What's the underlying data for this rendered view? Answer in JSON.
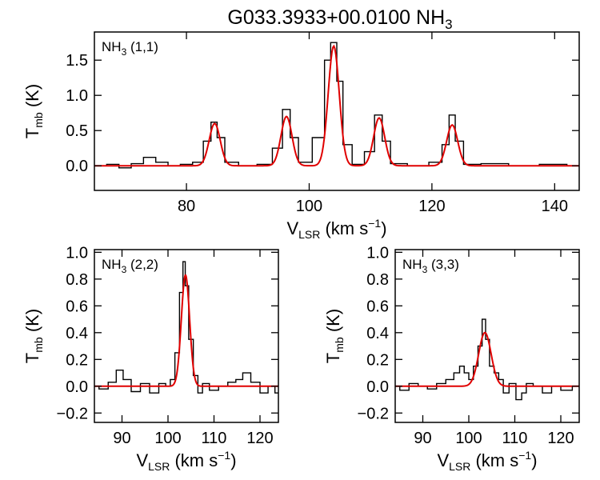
{
  "title": {
    "main": "G033.3933+00.0100 NH",
    "sub": "3"
  },
  "colors": {
    "data": "#000000",
    "fit": "#e00000",
    "axes": "#000000"
  },
  "chart_data": [
    {
      "type": "line",
      "panel": "top",
      "label": {
        "main": "NH",
        "sub": "3",
        "rest": " (1,1)"
      },
      "xlabel": {
        "main": "V",
        "sub": "LSR",
        "rest": " (km s",
        "sup": "−1",
        "close": ")"
      },
      "ylabel": {
        "main": "T",
        "sub": "mb",
        "rest": " (K)"
      },
      "xlim": [
        65,
        144
      ],
      "ylim": [
        -0.35,
        1.9
      ],
      "xticks": [
        80,
        100,
        120,
        140
      ],
      "xtick_labels": [
        "80",
        "100",
        "120",
        "140"
      ],
      "yticks": [
        0.0,
        0.5,
        1.0,
        1.5
      ],
      "ytick_labels": [
        "0.0",
        "0.5",
        "1.0",
        "1.5"
      ],
      "series": [
        {
          "role": "observed",
          "x": [
            66,
            68,
            70,
            72,
            74,
            76,
            78,
            80,
            82,
            83.5,
            84.5,
            85.5,
            87,
            90,
            93,
            95,
            96.3,
            97.5,
            99,
            102,
            103,
            104,
            105,
            106,
            108,
            110,
            111.3,
            112.5,
            114,
            118,
            121,
            122.3,
            123.3,
            124.3,
            126,
            130,
            135,
            140,
            144
          ],
          "y": [
            0.0,
            0.02,
            -0.03,
            0.03,
            0.12,
            0.05,
            0.0,
            0.02,
            0.05,
            0.35,
            0.62,
            0.4,
            0.05,
            0.0,
            0.02,
            0.25,
            0.8,
            0.4,
            0.05,
            0.4,
            1.5,
            1.75,
            1.2,
            0.3,
            0.02,
            0.2,
            0.72,
            0.35,
            0.03,
            0.0,
            0.05,
            0.3,
            0.72,
            0.35,
            0.02,
            0.03,
            0.0,
            0.02,
            0.0
          ]
        },
        {
          "role": "fit",
          "components": [
            {
              "center": 84.6,
              "amp": 0.6,
              "sigma": 0.9
            },
            {
              "center": 96.3,
              "amp": 0.7,
              "sigma": 0.9
            },
            {
              "center": 104.0,
              "amp": 1.7,
              "sigma": 0.9
            },
            {
              "center": 111.4,
              "amp": 0.68,
              "sigma": 0.9
            },
            {
              "center": 123.3,
              "amp": 0.58,
              "sigma": 0.9
            }
          ]
        }
      ]
    },
    {
      "type": "line",
      "panel": "bottom-left",
      "label": {
        "main": "NH",
        "sub": "3",
        "rest": " (2,2)"
      },
      "xlabel": {
        "main": "V",
        "sub": "LSR",
        "rest": " (km s",
        "sup": "−1",
        "close": ")"
      },
      "ylabel": {
        "main": "T",
        "sub": "mb",
        "rest": " (K)"
      },
      "xlim": [
        84,
        124
      ],
      "ylim": [
        -0.27,
        1.02
      ],
      "xticks": [
        90,
        100,
        110,
        120
      ],
      "xtick_labels": [
        "90",
        "100",
        "110",
        "120"
      ],
      "yticks": [
        -0.2,
        0.0,
        0.2,
        0.4,
        0.6,
        0.8,
        1.0
      ],
      "ytick_labels": [
        "−0.2",
        "0.0",
        "0.2",
        "0.4",
        "0.6",
        "0.8",
        "1.0"
      ],
      "series": [
        {
          "role": "observed",
          "x": [
            84,
            86,
            88,
            89.5,
            91,
            93,
            95,
            97,
            99,
            100,
            101,
            102,
            103,
            103.5,
            104,
            105,
            106,
            107,
            108,
            110,
            112,
            114,
            115.5,
            117,
            119,
            121,
            122.5,
            124
          ],
          "y": [
            0.0,
            -0.02,
            0.03,
            0.12,
            0.05,
            -0.04,
            0.02,
            -0.05,
            0.02,
            0.0,
            0.05,
            0.25,
            0.7,
            0.93,
            0.75,
            0.35,
            0.08,
            -0.05,
            0.02,
            -0.03,
            0.0,
            0.03,
            0.05,
            0.1,
            0.03,
            -0.05,
            0.0,
            -0.05
          ]
        },
        {
          "role": "fit",
          "components": [
            {
              "center": 103.8,
              "amp": 0.83,
              "sigma": 0.9
            }
          ]
        }
      ]
    },
    {
      "type": "line",
      "panel": "bottom-right",
      "label": {
        "main": "NH",
        "sub": "3",
        "rest": " (3,3)"
      },
      "xlabel": {
        "main": "V",
        "sub": "LSR",
        "rest": " (km s",
        "sup": "−1",
        "close": ")"
      },
      "ylabel": {
        "main": "T",
        "sub": "mb",
        "rest": " (K)"
      },
      "xlim": [
        84,
        124
      ],
      "ylim": [
        -0.27,
        1.02
      ],
      "xticks": [
        90,
        100,
        110,
        120
      ],
      "xtick_labels": [
        "90",
        "100",
        "110",
        "120"
      ],
      "yticks": [
        -0.2,
        0.0,
        0.2,
        0.4,
        0.6,
        0.8,
        1.0
      ],
      "ytick_labels": [
        "−0.2",
        "0.0",
        "0.2",
        "0.4",
        "0.6",
        "0.8",
        "1.0"
      ],
      "series": [
        {
          "role": "observed",
          "x": [
            84,
            86,
            88,
            90,
            92,
            94,
            96,
            97.5,
            98.5,
            99.5,
            100.5,
            101.5,
            102.5,
            103.3,
            104,
            105,
            106,
            107,
            108,
            109.5,
            111,
            112,
            113,
            115,
            117,
            119,
            121,
            124
          ],
          "y": [
            0.0,
            -0.03,
            0.02,
            0.0,
            -0.02,
            0.02,
            0.05,
            0.1,
            0.15,
            0.1,
            0.05,
            0.15,
            0.3,
            0.5,
            0.35,
            0.15,
            0.1,
            0.05,
            -0.05,
            0.02,
            -0.1,
            -0.05,
            0.02,
            0.0,
            -0.05,
            0.0,
            -0.03,
            0.0
          ]
        },
        {
          "role": "fit",
          "components": [
            {
              "center": 103.5,
              "amp": 0.4,
              "sigma": 1.35
            }
          ]
        }
      ]
    }
  ]
}
